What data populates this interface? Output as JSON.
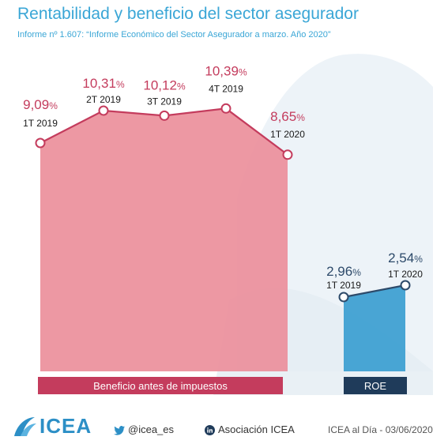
{
  "header": {
    "title": "Rentabilidad y beneficio del sector asegurador",
    "subtitle": "Informe nº 1.607: “Informe Económico del Sector Asegurador a marzo. Año 2020”"
  },
  "colors": {
    "title": "#3aa6d6",
    "beneficio_area": "#ec8f9b",
    "beneficio_line": "#c43c5d",
    "beneficio_label_bg": "#c43c5d",
    "roe_area": "#3b9ed0",
    "roe_line": "#2d4a6a",
    "roe_label_bg": "#1f3b5a"
  },
  "chart_data": [
    {
      "type": "area",
      "name": "Beneficio antes de impuestos",
      "categories": [
        "1T 2019",
        "2T 2019",
        "3T 2019",
        "4T 2019",
        "1T 2020"
      ],
      "values": [
        9.09,
        10.31,
        10.12,
        10.39,
        8.65
      ],
      "value_labels": [
        "9,09",
        "10,31",
        "10,12",
        "10,39",
        "8,65"
      ],
      "unit": "%"
    },
    {
      "type": "area",
      "name": "ROE",
      "categories": [
        "1T 2019",
        "1T 2020"
      ],
      "values": [
        2.96,
        2.54
      ],
      "value_labels": [
        "2,96",
        "2,54"
      ],
      "unit": "%"
    }
  ],
  "footer": {
    "logo_text": "ICEA",
    "logo_icon": "icea-logo-icon",
    "twitter_icon": "twitter-bird-icon",
    "twitter": "@icea_es",
    "linkedin_icon": "linkedin-icon",
    "linkedin": "Asociación ICEA",
    "credit": "ICEA al Día - 03/06/2020"
  }
}
